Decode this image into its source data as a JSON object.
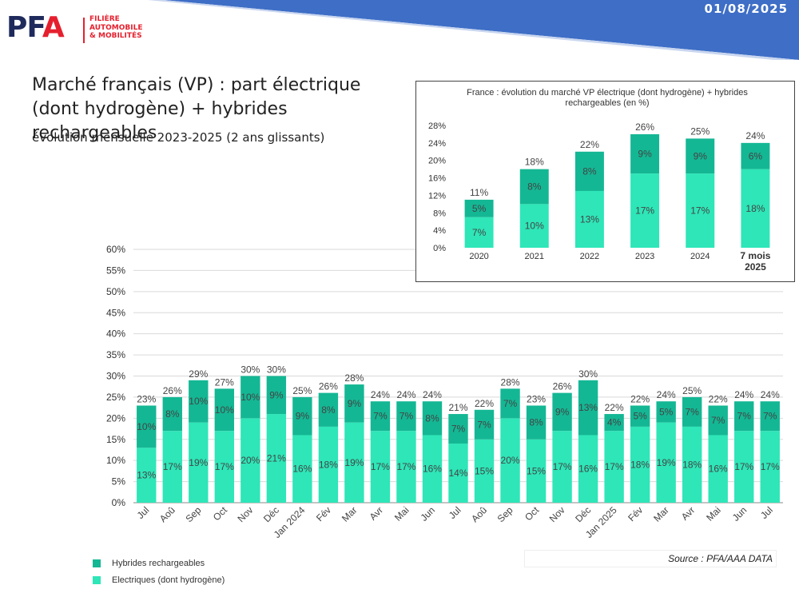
{
  "header": {
    "date": "01/08/2025"
  },
  "logo": {
    "brand_p": "PF",
    "brand_a": "A",
    "tagline": [
      "FILIÈRE",
      "AUTOMOBILE",
      "& MOBILITÉS"
    ]
  },
  "page": {
    "title": "Marché français (VP) : part électrique (dont hydrogène) + hybrides rechargeables",
    "subtitle": "évolution mensuelle 2023-2025 (2 ans glissants)"
  },
  "source": "Source : PFA/AAA DATA",
  "colors": {
    "hybrid": "#14b794",
    "electric": "#2ee6b8",
    "banner": "#3e6ec6"
  },
  "legend": [
    {
      "label": "Hybrides rechargeables",
      "color": "#14b794"
    },
    {
      "label": "Electriques (dont hydrogène)",
      "color": "#2ee6b8"
    }
  ],
  "chart_data": [
    {
      "type": "bar",
      "stacked": true,
      "title": "",
      "categories": [
        "Jul",
        "Aoû",
        "Sep",
        "Oct",
        "Nov",
        "Déc",
        "Jan 2024",
        "Fév",
        "Mar",
        "Avr",
        "Mai",
        "Jun",
        "Jul",
        "Aoû",
        "Sep",
        "Oct",
        "Nov",
        "Déc",
        "Jan 2025",
        "Fév",
        "Mar",
        "Avr",
        "Mai",
        "Jun",
        "Jul"
      ],
      "series": [
        {
          "name": "Electriques (dont hydrogène)",
          "values": [
            13,
            17,
            19,
            17,
            20,
            21,
            16,
            18,
            19,
            17,
            17,
            16,
            14,
            15,
            20,
            15,
            17,
            16,
            17,
            18,
            19,
            18,
            16,
            17,
            17
          ]
        },
        {
          "name": "Hybrides rechargeables",
          "values": [
            10,
            8,
            10,
            10,
            10,
            9,
            9,
            8,
            9,
            7,
            7,
            8,
            7,
            7,
            7,
            8,
            9,
            13,
            4,
            5,
            5,
            7,
            7,
            7,
            7
          ]
        }
      ],
      "totals": [
        23,
        26,
        29,
        27,
        30,
        30,
        25,
        26,
        28,
        24,
        24,
        24,
        21,
        22,
        28,
        23,
        26,
        30,
        22,
        22,
        24,
        25,
        22,
        24,
        24
      ],
      "unit": "%",
      "ylim": [
        0,
        60
      ],
      "yticks": [
        0,
        5,
        10,
        15,
        20,
        25,
        30,
        35,
        40,
        45,
        50,
        55,
        60
      ],
      "grid": true
    },
    {
      "type": "bar",
      "stacked": true,
      "title": "France : évolution du marché VP électrique (dont hydrogène) + hybrides rechargeables (en %)",
      "categories": [
        "2020",
        "2021",
        "2022",
        "2023",
        "2024",
        "7 mois 2025"
      ],
      "series": [
        {
          "name": "Electriques (dont hydrogène)",
          "values": [
            7,
            10,
            13,
            17,
            17,
            18
          ]
        },
        {
          "name": "Hybrides rechargeables",
          "values": [
            5,
            8,
            8,
            9,
            9,
            6
          ]
        }
      ],
      "totals": [
        11,
        18,
        22,
        26,
        25,
        24
      ],
      "unit": "%",
      "ylim": [
        0,
        28
      ],
      "yticks": [
        0,
        4,
        8,
        12,
        16,
        20,
        24,
        28
      ],
      "grid": false
    }
  ]
}
